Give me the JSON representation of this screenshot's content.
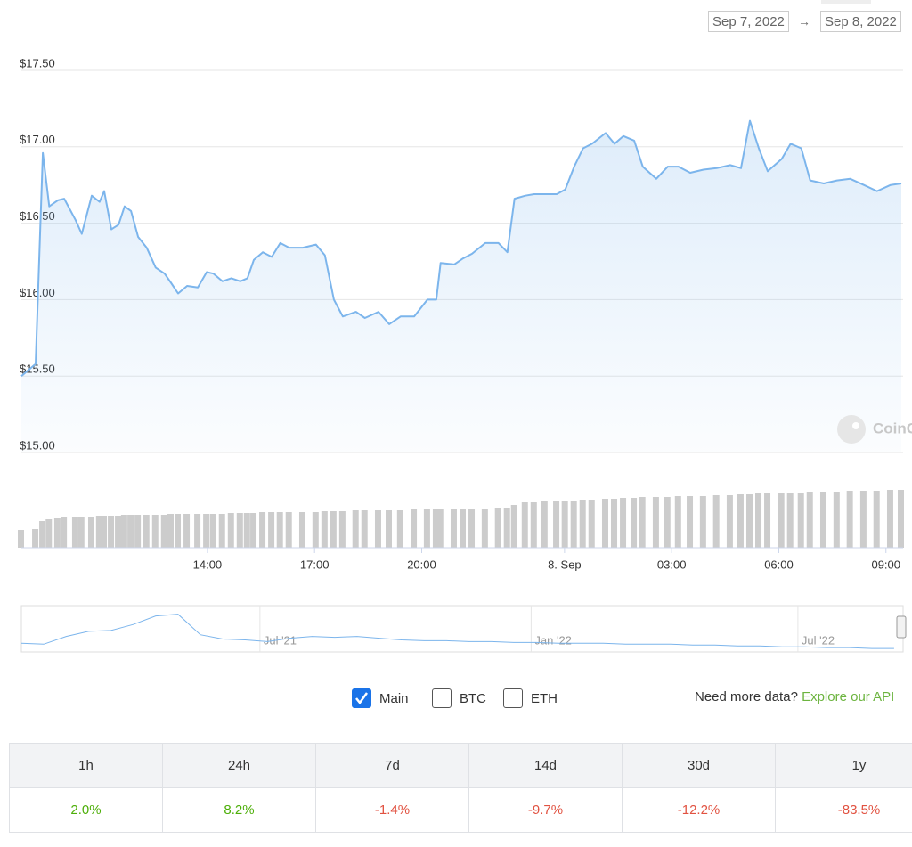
{
  "chart_data": {
    "type": "line",
    "date_from": "Sep 7, 2022",
    "separator": "→",
    "date_to": "Sep 8, 2022",
    "watermark": "CoinGecko",
    "color": "#7cb5ec",
    "xlim": [
      8.79,
      33.48
    ],
    "xticks": [
      {
        "value": 14,
        "label": "14:00"
      },
      {
        "value": 17,
        "label": "17:00"
      },
      {
        "value": 20,
        "label": "20:00"
      },
      {
        "value": 24,
        "label": "8. Sep"
      },
      {
        "value": 27,
        "label": "03:00"
      },
      {
        "value": 30,
        "label": "06:00"
      },
      {
        "value": 33,
        "label": "09:00"
      }
    ],
    "ylim": [
      15,
      17.5
    ],
    "yticks": [
      {
        "value": 15,
        "label": "$15.00"
      },
      {
        "value": 15.5,
        "label": "$15.50"
      },
      {
        "value": 16,
        "label": "$16.00"
      },
      {
        "value": 16.5,
        "label": "$16.50"
      },
      {
        "value": 17,
        "label": "$17.00"
      },
      {
        "value": 17.5,
        "label": "$17.50"
      }
    ],
    "grid": true,
    "x": [
      8.79,
      9.19,
      9.39,
      9.57,
      9.81,
      9.99,
      10.31,
      10.48,
      10.76,
      10.98,
      11.11,
      11.31,
      11.51,
      11.68,
      11.86,
      12.06,
      12.3,
      12.55,
      12.8,
      12.98,
      13.18,
      13.43,
      13.73,
      13.98,
      14.17,
      14.42,
      14.67,
      14.92,
      15.12,
      15.3,
      15.55,
      15.8,
      16.04,
      16.29,
      16.67,
      17.04,
      17.29,
      17.54,
      17.79,
      18.16,
      18.41,
      18.79,
      19.09,
      19.41,
      19.79,
      20.16,
      20.41,
      20.53,
      20.91,
      21.16,
      21.41,
      21.78,
      22.15,
      22.4,
      22.6,
      22.9,
      23.15,
      23.45,
      23.78,
      24.02,
      24.27,
      24.52,
      24.77,
      25.15,
      25.4,
      25.65,
      25.95,
      26.19,
      26.57,
      26.89,
      27.19,
      27.52,
      27.89,
      28.26,
      28.64,
      28.94,
      29.19,
      29.44,
      29.69,
      30.08,
      30.33,
      30.63,
      30.88,
      31.26,
      31.63,
      32.0,
      32.38,
      32.75,
      33.13,
      33.43
    ],
    "values": [
      15.5,
      15.58,
      16.96,
      16.61,
      16.65,
      16.66,
      16.52,
      16.43,
      16.68,
      16.64,
      16.71,
      16.46,
      16.49,
      16.61,
      16.58,
      16.41,
      16.34,
      16.21,
      16.17,
      16.11,
      16.04,
      16.09,
      16.08,
      16.18,
      16.17,
      16.12,
      16.14,
      16.12,
      16.14,
      16.26,
      16.31,
      16.28,
      16.37,
      16.34,
      16.34,
      16.36,
      16.29,
      16.0,
      15.89,
      15.92,
      15.88,
      15.92,
      15.84,
      15.89,
      15.89,
      16.0,
      16.0,
      16.24,
      16.23,
      16.27,
      16.3,
      16.37,
      16.37,
      16.31,
      16.66,
      16.68,
      16.69,
      16.69,
      16.69,
      16.72,
      16.87,
      16.99,
      17.02,
      17.09,
      17.02,
      17.07,
      17.04,
      16.87,
      16.79,
      16.87,
      16.87,
      16.83,
      16.85,
      16.86,
      16.88,
      16.86,
      17.17,
      16.99,
      16.84,
      16.92,
      17.02,
      16.99,
      16.78,
      16.76,
      16.78,
      16.79,
      16.75,
      16.71,
      16.75,
      16.76
    ],
    "volume": {
      "color": "#cccccc",
      "ylim": [
        0,
        100
      ],
      "values": [
        20,
        21,
        30,
        32,
        33,
        34,
        34,
        35,
        35,
        36,
        36,
        36,
        36,
        37,
        37,
        37,
        37,
        37,
        37,
        38,
        38,
        38,
        38,
        38,
        38,
        38,
        39,
        39,
        39,
        39,
        40,
        40,
        40,
        40,
        40,
        40,
        41,
        41,
        41,
        42,
        42,
        42,
        42,
        42,
        43,
        43,
        43,
        43,
        43,
        44,
        44,
        44,
        45,
        45,
        48,
        51,
        51,
        52,
        52,
        53,
        53,
        54,
        54,
        55,
        55,
        56,
        56,
        57,
        57,
        57,
        58,
        58,
        58,
        59,
        59,
        60,
        60,
        61,
        61,
        62,
        62,
        62,
        63,
        63,
        63,
        64,
        64,
        64,
        65,
        65
      ]
    },
    "navigator": {
      "color": "#7cb5ec",
      "xlim": [
        0,
        39.4
      ],
      "ylim": [
        0,
        50
      ],
      "values": [
        8,
        7,
        16,
        22,
        23,
        30,
        40,
        42,
        18,
        13,
        12,
        10,
        14,
        16,
        15,
        16,
        14,
        12,
        11,
        11,
        10,
        10,
        9,
        9,
        8,
        8,
        8,
        7,
        7,
        7,
        6,
        6,
        5,
        5,
        4,
        4,
        3,
        3,
        2,
        2
      ],
      "xticks": [
        {
          "value": 10.66,
          "label": "Jul '21"
        },
        {
          "value": 22.78,
          "label": "Jan '22"
        },
        {
          "value": 34.7,
          "label": "Jul '22"
        }
      ]
    },
    "series_toggles": [
      {
        "label": "Main",
        "checked": true
      },
      {
        "label": "BTC",
        "checked": false
      },
      {
        "label": "ETH",
        "checked": false
      }
    ],
    "more_data_text": "Need more data?",
    "more_data_link": "Explore our API"
  },
  "change_table": {
    "header": [
      "1h",
      "24h",
      "7d",
      "14d",
      "30d",
      "1y"
    ],
    "rows": [
      [
        "2.0%",
        "8.2%",
        "-1.4%",
        "-9.7%",
        "-12.2%",
        "-83.5%"
      ]
    ]
  }
}
